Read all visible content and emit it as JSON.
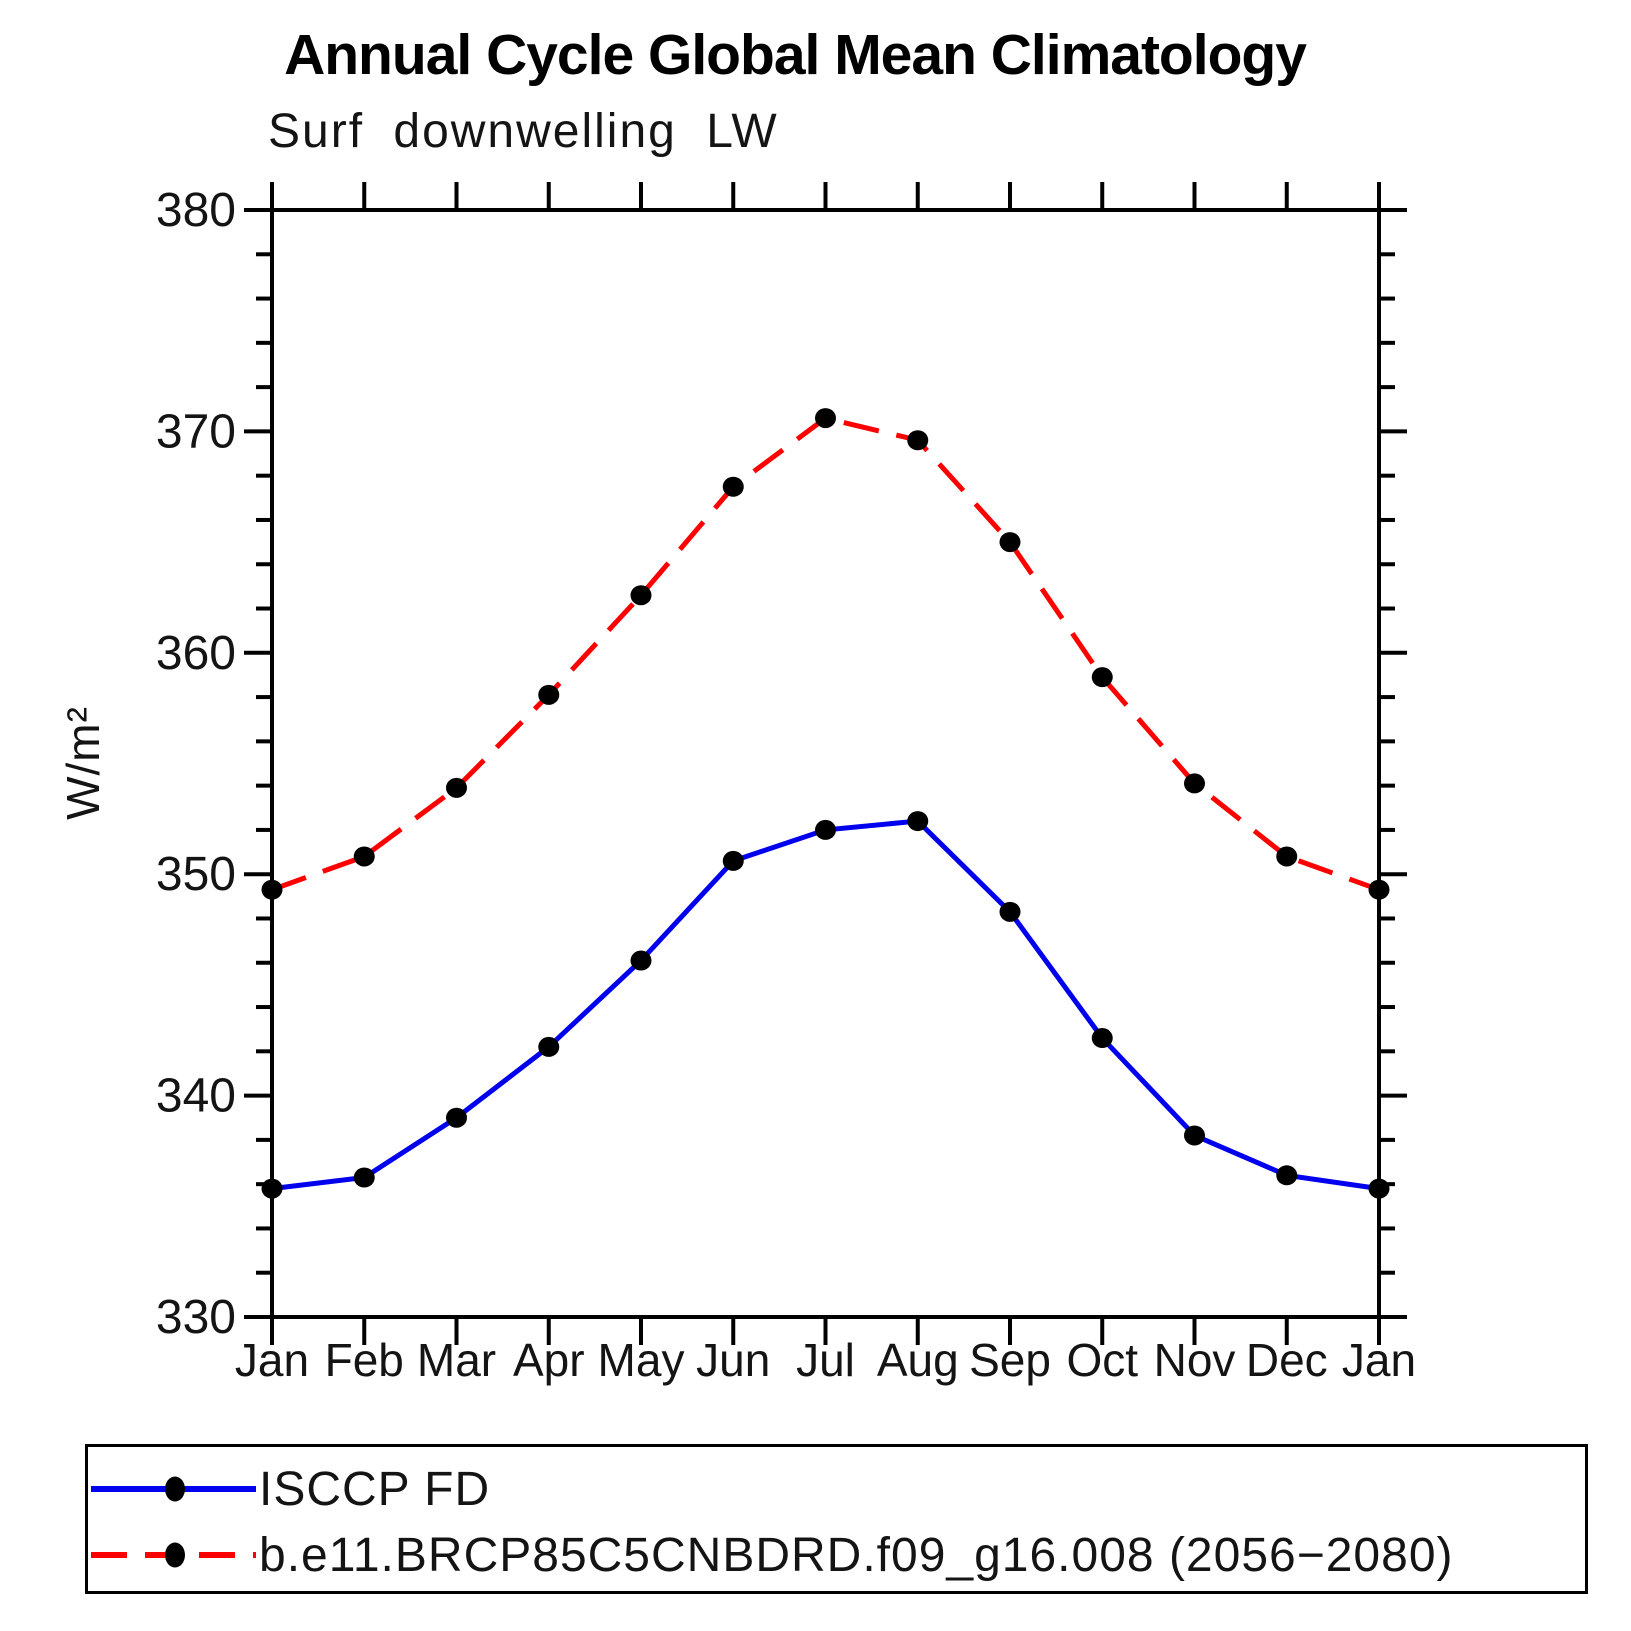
{
  "title": "Annual Cycle Global Mean Climatology",
  "subtitle": "Surf downwelling LW",
  "y_axis_title": "W/m²",
  "chart_data": {
    "type": "line",
    "title": "Annual Cycle Global Mean Climatology",
    "subtitle": "Surf downwelling LW",
    "ylabel": "W/m²",
    "ylim": [
      330,
      380
    ],
    "y_tick_labels": [
      "330",
      "340",
      "350",
      "360",
      "370",
      "380"
    ],
    "y_major_tick_step": 10,
    "y_minor_tick_step": 2,
    "grid": false,
    "frame": "box-with-outside-ticks",
    "legend_position": "boxed-below-left",
    "marker": "black-filled-circle",
    "categories": [
      "Jan",
      "Feb",
      "Mar",
      "Apr",
      "May",
      "Jun",
      "Jul",
      "Aug",
      "Sep",
      "Oct",
      "Nov",
      "Dec",
      "Jan"
    ],
    "series": [
      {
        "name": "ISCCP FD",
        "color": "#0000ee",
        "line_style": "solid",
        "values": [
          335.8,
          336.3,
          339.0,
          342.2,
          346.1,
          350.6,
          352.0,
          352.4,
          348.3,
          342.6,
          338.2,
          336.4,
          335.8
        ]
      },
      {
        "name": "b.e11.BRCP85C5CNBDRD.f09_g16.008 (2056−2080)",
        "color": "#ff0000",
        "line_style": "dashed",
        "values": [
          349.3,
          350.8,
          353.9,
          358.1,
          362.6,
          367.5,
          370.6,
          369.6,
          365.0,
          358.9,
          354.1,
          350.8,
          349.3
        ]
      }
    ]
  }
}
